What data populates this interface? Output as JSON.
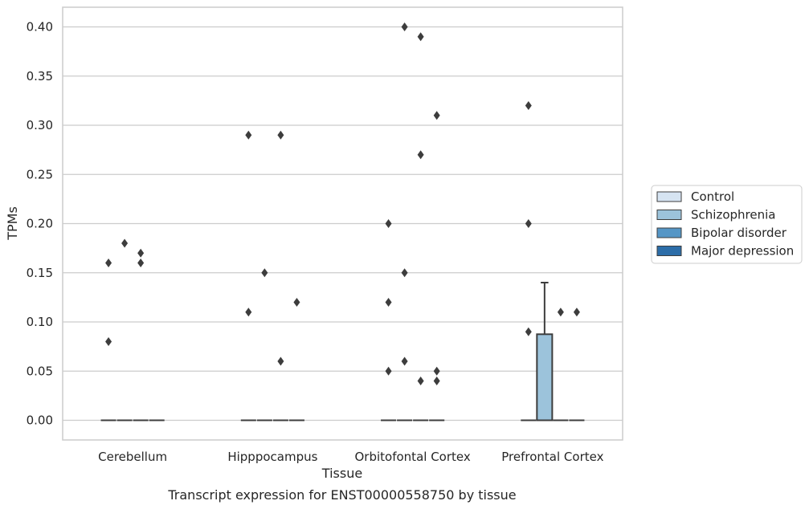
{
  "chart_data": {
    "type": "box",
    "title": "",
    "caption": "Transcript expression for ENST00000558750 by tissue",
    "xlabel": "Tissue",
    "ylabel": "TPMs",
    "ylim": [
      -0.02,
      0.42
    ],
    "yticks": [
      0.0,
      0.05,
      0.1,
      0.15,
      0.2,
      0.25,
      0.3,
      0.35,
      0.4
    ],
    "ytick_labels": [
      "0.00",
      "0.05",
      "0.10",
      "0.15",
      "0.20",
      "0.25",
      "0.30",
      "0.35",
      "0.40"
    ],
    "grid": "horizontal",
    "legend_position": "right",
    "categories": [
      "Cerebellum",
      "Hipppocampus",
      "Orbitofontal Cortex",
      "Prefrontal Cortex"
    ],
    "series": [
      {
        "name": "Control",
        "color": "#d6e4f2",
        "boxes": [
          {
            "q1": 0,
            "median": 0,
            "q3": 0,
            "whisker_low": 0,
            "whisker_high": 0,
            "outliers": [
              0.16,
              0.08
            ]
          },
          {
            "q1": 0,
            "median": 0,
            "q3": 0,
            "whisker_low": 0,
            "whisker_high": 0,
            "outliers": [
              0.29,
              0.11
            ]
          },
          {
            "q1": 0,
            "median": 0,
            "q3": 0,
            "whisker_low": 0,
            "whisker_high": 0,
            "outliers": [
              0.2,
              0.12,
              0.05
            ]
          },
          {
            "q1": 0,
            "median": 0,
            "q3": 0,
            "whisker_low": 0,
            "whisker_high": 0,
            "outliers": [
              0.32,
              0.2,
              0.09
            ]
          }
        ]
      },
      {
        "name": "Schizophrenia",
        "color": "#9cc3db",
        "boxes": [
          {
            "q1": 0,
            "median": 0,
            "q3": 0,
            "whisker_low": 0,
            "whisker_high": 0,
            "outliers": [
              0.18
            ]
          },
          {
            "q1": 0,
            "median": 0,
            "q3": 0,
            "whisker_low": 0,
            "whisker_high": 0,
            "outliers": [
              0.15
            ]
          },
          {
            "q1": 0,
            "median": 0,
            "q3": 0,
            "whisker_low": 0,
            "whisker_high": 0,
            "outliers": [
              0.4,
              0.15,
              0.06
            ]
          },
          {
            "q1": 0,
            "median": 0,
            "q3": 0.0875,
            "whisker_low": 0,
            "whisker_high": 0.14,
            "outliers": []
          }
        ]
      },
      {
        "name": "Bipolar disorder",
        "color": "#5596c6",
        "boxes": [
          {
            "q1": 0,
            "median": 0,
            "q3": 0,
            "whisker_low": 0,
            "whisker_high": 0,
            "outliers": [
              0.17,
              0.16
            ]
          },
          {
            "q1": 0,
            "median": 0,
            "q3": 0,
            "whisker_low": 0,
            "whisker_high": 0,
            "outliers": [
              0.29,
              0.06
            ]
          },
          {
            "q1": 0,
            "median": 0,
            "q3": 0,
            "whisker_low": 0,
            "whisker_high": 0,
            "outliers": [
              0.39,
              0.27,
              0.04
            ]
          },
          {
            "q1": 0,
            "median": 0,
            "q3": 0,
            "whisker_low": 0,
            "whisker_high": 0,
            "outliers": [
              0.11
            ]
          }
        ]
      },
      {
        "name": "Major depression",
        "color": "#2c6da8",
        "boxes": [
          {
            "q1": 0,
            "median": 0,
            "q3": 0,
            "whisker_low": 0,
            "whisker_high": 0,
            "outliers": []
          },
          {
            "q1": 0,
            "median": 0,
            "q3": 0,
            "whisker_low": 0,
            "whisker_high": 0,
            "outliers": [
              0.12
            ]
          },
          {
            "q1": 0,
            "median": 0,
            "q3": 0,
            "whisker_low": 0,
            "whisker_high": 0,
            "outliers": [
              0.31,
              0.05,
              0.04
            ]
          },
          {
            "q1": 0,
            "median": 0,
            "q3": 0,
            "whisker_low": 0,
            "whisker_high": 0,
            "outliers": [
              0.11
            ]
          }
        ]
      }
    ]
  }
}
